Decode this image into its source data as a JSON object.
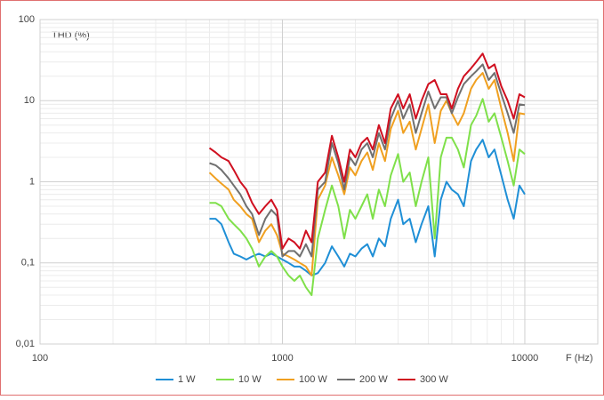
{
  "chart_data": {
    "type": "line",
    "y_label": "THD (%)",
    "x_label": "F (Hz)",
    "x_log": true,
    "y_log": true,
    "grid": true,
    "minor_grid": true,
    "legend": "bottom",
    "xlim": [
      100,
      20000
    ],
    "xticks": [
      100,
      1000,
      10000
    ],
    "ylim": [
      0.01,
      100
    ],
    "yticks": [
      {
        "value": 0.01,
        "label": "0,01"
      },
      {
        "value": 0.1,
        "label": "0,1"
      },
      1,
      10,
      100
    ],
    "x": [
      500,
      530,
      560,
      600,
      630,
      670,
      710,
      750,
      800,
      850,
      900,
      950,
      1000,
      1060,
      1120,
      1180,
      1250,
      1320,
      1400,
      1500,
      1600,
      1700,
      1800,
      1900,
      2000,
      2120,
      2240,
      2360,
      2500,
      2650,
      2800,
      3000,
      3150,
      3350,
      3550,
      3750,
      4000,
      4250,
      4500,
      4750,
      5000,
      5300,
      5600,
      6000,
      6300,
      6700,
      7100,
      7500,
      8000,
      8500,
      9000,
      9500,
      10000
    ],
    "series": [
      {
        "name": "1 W",
        "color": "#1f8fd6",
        "values": [
          0.35,
          0.35,
          0.3,
          0.18,
          0.13,
          0.12,
          0.11,
          0.12,
          0.13,
          0.12,
          0.13,
          0.12,
          0.11,
          0.1,
          0.09,
          0.09,
          0.08,
          0.07,
          0.075,
          0.1,
          0.16,
          0.12,
          0.09,
          0.13,
          0.12,
          0.15,
          0.17,
          0.12,
          0.2,
          0.16,
          0.35,
          0.6,
          0.3,
          0.35,
          0.18,
          0.3,
          0.5,
          0.12,
          0.6,
          1.0,
          0.8,
          0.7,
          0.5,
          1.8,
          2.5,
          3.3,
          2.0,
          2.5,
          1.2,
          0.6,
          0.35,
          0.9,
          0.7
        ]
      },
      {
        "name": "10 W",
        "color": "#7fe04a",
        "values": [
          0.55,
          0.55,
          0.5,
          0.35,
          0.3,
          0.25,
          0.2,
          0.15,
          0.09,
          0.12,
          0.14,
          0.12,
          0.09,
          0.07,
          0.06,
          0.07,
          0.05,
          0.04,
          0.2,
          0.45,
          0.9,
          0.5,
          0.2,
          0.45,
          0.35,
          0.5,
          0.7,
          0.35,
          0.8,
          0.5,
          1.2,
          2.2,
          1.0,
          1.3,
          0.5,
          1.0,
          2.0,
          0.2,
          2.0,
          3.5,
          3.5,
          2.5,
          1.5,
          5.0,
          6.5,
          10.5,
          5.5,
          7.0,
          3.5,
          1.8,
          0.9,
          2.5,
          2.2
        ]
      },
      {
        "name": "100 W",
        "color": "#f0a020",
        "values": [
          1.3,
          1.1,
          0.95,
          0.8,
          0.6,
          0.5,
          0.4,
          0.35,
          0.18,
          0.25,
          0.3,
          0.22,
          0.13,
          0.12,
          0.11,
          0.1,
          0.09,
          0.07,
          0.6,
          0.9,
          2.0,
          1.2,
          0.7,
          1.5,
          1.2,
          1.8,
          2.3,
          1.4,
          3.0,
          1.8,
          4.5,
          7.5,
          4.0,
          5.5,
          2.5,
          4.5,
          9.0,
          3.0,
          7.5,
          10,
          7,
          5,
          7,
          14,
          18,
          22,
          14,
          18,
          8,
          4,
          1.8,
          7,
          6.8
        ]
      },
      {
        "name": "200 W",
        "color": "#707070",
        "values": [
          1.7,
          1.6,
          1.4,
          1.1,
          0.9,
          0.7,
          0.5,
          0.4,
          0.22,
          0.35,
          0.45,
          0.38,
          0.12,
          0.14,
          0.14,
          0.12,
          0.17,
          0.12,
          0.8,
          1.0,
          3.0,
          1.7,
          0.8,
          2.0,
          1.6,
          2.5,
          3.0,
          2.0,
          4.0,
          2.5,
          6.0,
          10,
          6,
          9,
          4,
          7,
          13,
          8,
          11,
          11,
          7,
          11,
          16,
          20,
          23,
          28,
          18,
          22,
          12,
          7,
          4,
          9,
          8.8
        ]
      },
      {
        "name": "300 W",
        "color": "#d01020",
        "values": [
          2.6,
          2.3,
          2.0,
          1.8,
          1.4,
          1.0,
          0.8,
          0.55,
          0.4,
          0.5,
          0.6,
          0.45,
          0.15,
          0.2,
          0.18,
          0.15,
          0.25,
          0.18,
          1.0,
          1.3,
          3.7,
          2.0,
          1.0,
          2.5,
          2.0,
          3.0,
          3.5,
          2.5,
          5.0,
          3.0,
          8.0,
          12,
          8,
          12,
          6,
          10,
          16,
          18,
          12,
          12,
          8,
          14,
          20,
          25,
          30,
          38,
          25,
          28,
          15,
          10,
          6,
          12,
          11
        ]
      }
    ]
  }
}
